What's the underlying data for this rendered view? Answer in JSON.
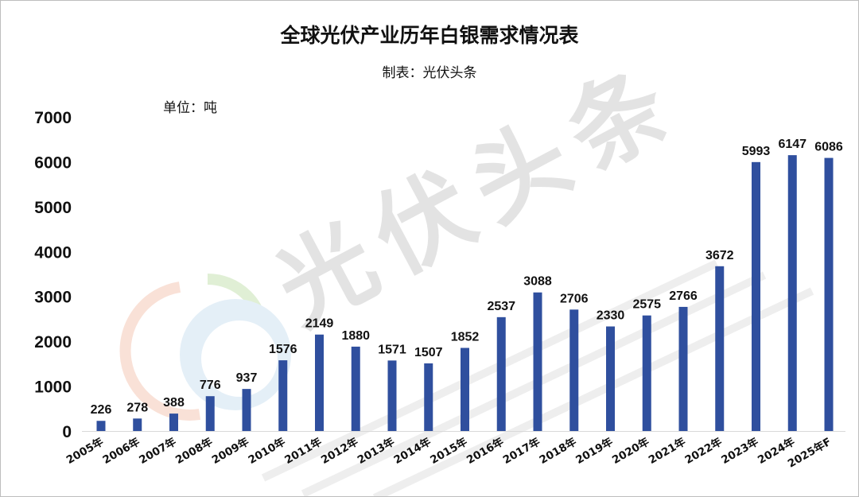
{
  "chart_data": {
    "type": "bar",
    "title": "全球光伏产业历年白银需求情况表",
    "subtitle": "制表：光伏头条",
    "unit_label": "单位：吨",
    "watermark": "光伏头条",
    "categories": [
      "2005年",
      "2006年",
      "2007年",
      "2008年",
      "2009年",
      "2010年",
      "2011年",
      "2012年",
      "2013年",
      "2014年",
      "2015年",
      "2016年",
      "2017年",
      "2018年",
      "2019年",
      "2020年",
      "2021年",
      "2022年",
      "2023年",
      "2024年",
      "2025年F"
    ],
    "values": [
      226,
      278,
      388,
      776,
      937,
      1576,
      2149,
      1880,
      1571,
      1507,
      1852,
      2537,
      3088,
      2706,
      2330,
      2575,
      2766,
      3672,
      5993,
      6147,
      6086
    ],
    "y_ticks": [
      "0",
      "1000",
      "2000",
      "3000",
      "4000",
      "5000",
      "6000",
      "7000"
    ],
    "ylim": [
      0,
      7000
    ],
    "bar_color": "#2f4f9e",
    "grid": false,
    "legend": "none"
  }
}
